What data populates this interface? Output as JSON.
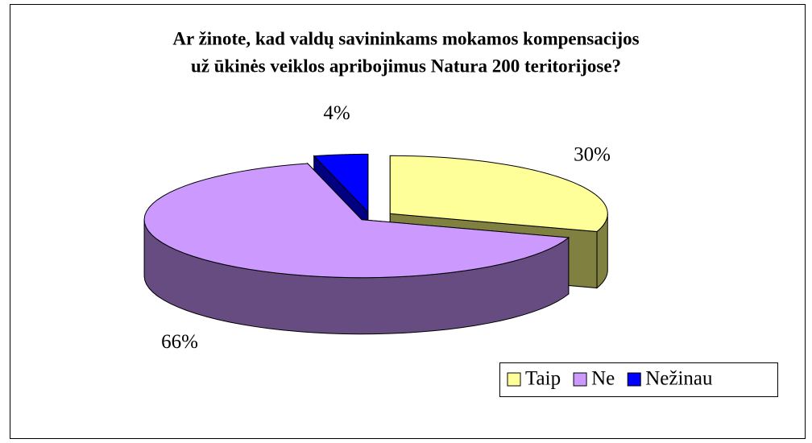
{
  "chart_data": {
    "type": "pie",
    "title": [
      "Ar žinote, kad valdų savininkams mokamos kompensacijos",
      "už ūkinės veiklos apribojimus Natura 200 teritorijose?"
    ],
    "categories": [
      "Taip",
      "Ne",
      "Nežinau"
    ],
    "values": [
      30,
      66,
      4
    ],
    "value_labels": [
      "30%",
      "66%",
      "4%"
    ],
    "colors": [
      "#ffff99",
      "#cc99ff",
      "#0000ff"
    ],
    "side_colors": [
      "#808040",
      "#664c80",
      "#000080"
    ],
    "legend": "bottom-right"
  }
}
